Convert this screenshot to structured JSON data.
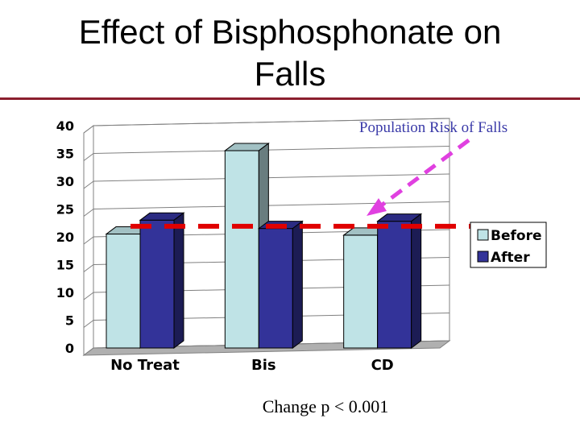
{
  "slide": {
    "title_line1": "Effect of Bisphosphonate on",
    "title_line2": "Falls",
    "footnote": "Change p < 0.001"
  },
  "chart_data": {
    "type": "bar",
    "subtype": "3d-clustered",
    "categories": [
      "No Treat",
      "Bis",
      "CD"
    ],
    "series": [
      {
        "name": "Before",
        "values": [
          20.5,
          35.5,
          20.3
        ],
        "color": "#bfe3e6"
      },
      {
        "name": "After",
        "values": [
          23,
          21.5,
          22.8
        ],
        "color": "#333399"
      }
    ],
    "y_ticks": [
      "0",
      "5",
      "10",
      "15",
      "20",
      "25",
      "30",
      "35",
      "40"
    ],
    "ylim": [
      0,
      40
    ],
    "grid": true,
    "legend": "right",
    "reference_line": {
      "label": "Population Risk of Falls",
      "value": 22.2,
      "color": "#e00000"
    },
    "annotation_arrow_color": "#e040e0",
    "annotation_text_color": "#3a3aa8"
  }
}
